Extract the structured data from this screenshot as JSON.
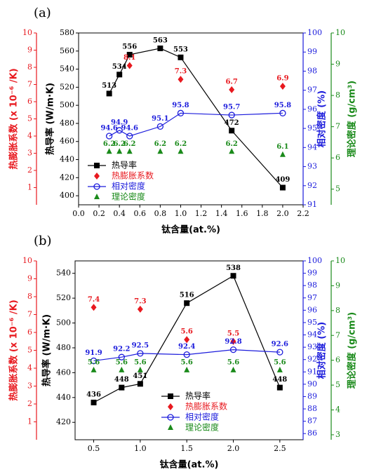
{
  "chart_data": [
    {
      "type": "line",
      "panel_label": "(a)",
      "xlabel": "钛含量(at.%)",
      "xlim": [
        0,
        2.2
      ],
      "xticks": [
        {
          "value": 0,
          "label": "0.0"
        },
        0.2,
        0.4,
        0.6,
        0.8,
        {
          "value": 1,
          "label": "1.0"
        },
        1.2,
        1.4,
        1.6,
        1.8,
        {
          "value": 2,
          "label": "2.0"
        },
        2.2
      ],
      "ylabel": "热导率 (W/m·K)",
      "ylim": [
        390,
        580
      ],
      "yticks": [
        400,
        420,
        440,
        460,
        480,
        500,
        520,
        540,
        560,
        580
      ],
      "y2label": "相对密度 (%)",
      "y2lim": [
        91,
        100
      ],
      "y2ticks": [
        91,
        92,
        93,
        94,
        95,
        96,
        97,
        98,
        99,
        100
      ],
      "y3label": "热膨胀系数 (x 10⁻⁶ /K)",
      "y3lim": [
        0,
        10
      ],
      "y3ticks": [
        1,
        2,
        3,
        4,
        5,
        6,
        7,
        8,
        9,
        10
      ],
      "y4label": "理论密度 (g/cm³)",
      "y4lim": [
        4.5,
        10
      ],
      "y4ticks": [
        5,
        6,
        7,
        8,
        9,
        10
      ],
      "series": [
        {
          "name": "热导率",
          "color": "#000000",
          "marker": "square",
          "line": true,
          "axis": "y",
          "x": [
            0.3,
            0.4,
            0.5,
            0.8,
            1.0,
            1.5,
            2.0
          ],
          "values": [
            513,
            534,
            556,
            563,
            553,
            472,
            409
          ]
        },
        {
          "name": "热膨胀系数",
          "color": "#e8191f",
          "marker": "diamond",
          "line": false,
          "axis": "y3",
          "x": [
            0.5,
            1.0,
            1.5,
            2.0
          ],
          "values": [
            8.1,
            7.3,
            6.7,
            6.9
          ]
        },
        {
          "name": "相对密度",
          "color": "#1c1cdc",
          "marker": "circle",
          "line": true,
          "axis": "y2",
          "x": [
            0.3,
            0.4,
            0.5,
            0.8,
            1.0,
            1.5,
            2.0
          ],
          "values": [
            94.6,
            94.9,
            94.6,
            95.1,
            95.8,
            95.7,
            95.8
          ]
        },
        {
          "name": "理论密度",
          "color": "#1a8a1a",
          "marker": "triangle",
          "line": false,
          "axis": "y4",
          "x": [
            0.3,
            0.4,
            0.5,
            0.8,
            1.0,
            1.5,
            2.0
          ],
          "values": [
            6.2,
            6.2,
            6.2,
            6.2,
            6.2,
            6.2,
            6.1
          ]
        }
      ]
    },
    {
      "type": "line",
      "panel_label": "(b)",
      "xlabel": "钛含量(at.%)",
      "xlim": [
        0.3,
        2.75
      ],
      "xticks": [
        0.5,
        {
          "value": 1,
          "label": "1.0"
        },
        1.5,
        {
          "value": 2,
          "label": "2.0"
        },
        2.5
      ],
      "ylabel": "热导率 (W/m·K)",
      "ylim": [
        406,
        550
      ],
      "yticks": [
        420,
        440,
        460,
        480,
        500,
        520,
        540
      ],
      "y2label": "相对密度 (%)",
      "y2lim": [
        85.5,
        100
      ],
      "y2ticks": [
        86,
        87,
        88,
        89,
        90,
        91,
        92,
        93,
        94,
        95,
        96,
        97,
        98,
        99,
        100
      ],
      "y3label": "热膨胀系数 (x 10⁻⁶ /K)",
      "y3lim": [
        0,
        10
      ],
      "y3ticks": [
        1,
        2,
        3,
        4,
        5,
        6,
        7,
        8,
        9,
        10
      ],
      "y4label": "理论密度 (g/cm³)",
      "y4lim": [
        2.8,
        10
      ],
      "y4ticks": [
        3,
        4,
        5,
        6,
        7,
        8,
        9,
        10
      ],
      "series": [
        {
          "name": "热导率",
          "color": "#000000",
          "marker": "square",
          "line": true,
          "axis": "y",
          "x": [
            0.5,
            0.8,
            1.0,
            1.5,
            2.0,
            2.5
          ],
          "values": [
            436,
            448,
            451,
            516,
            538,
            448
          ]
        },
        {
          "name": "热膨胀系数",
          "color": "#e8191f",
          "marker": "diamond",
          "line": false,
          "axis": "y3",
          "x": [
            0.5,
            1.0,
            1.5,
            2.0
          ],
          "values": [
            7.4,
            7.3,
            5.6,
            5.5
          ]
        },
        {
          "name": "相对密度",
          "color": "#1c1cdc",
          "marker": "circle",
          "line": true,
          "axis": "y2",
          "x": [
            0.5,
            0.8,
            1.0,
            1.5,
            2.0,
            2.5
          ],
          "values": [
            91.9,
            92.2,
            92.5,
            92.4,
            92.8,
            92.6
          ]
        },
        {
          "name": "理论密度",
          "color": "#1a8a1a",
          "marker": "triangle",
          "line": false,
          "axis": "y4",
          "x": [
            0.5,
            0.8,
            1.0,
            1.5,
            2.0,
            2.5
          ],
          "values": [
            5.6,
            5.6,
            5.6,
            5.6,
            5.6,
            5.6
          ]
        }
      ]
    }
  ]
}
